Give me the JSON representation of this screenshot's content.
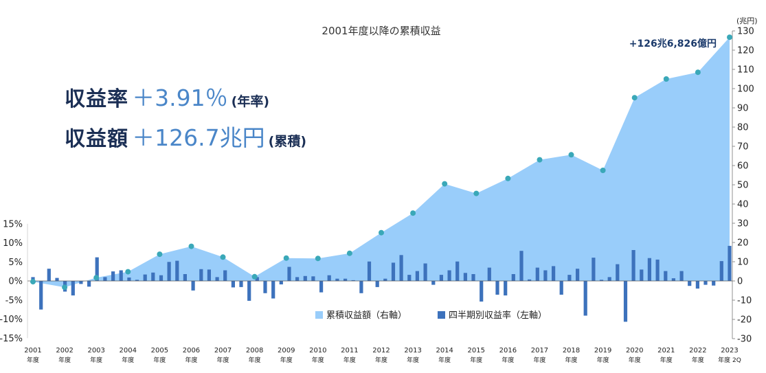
{
  "chart_data": {
    "type": "area+bar",
    "title": "2001年度以降の累積収益",
    "right_axis": {
      "unit": "(兆円)",
      "ylim": [
        -30,
        130
      ],
      "ticks": [
        "130",
        "120",
        "110",
        "100",
        "90",
        "80",
        "70",
        "60",
        "50",
        "40",
        "30",
        "20",
        "10",
        "0",
        "-10",
        "-20",
        "-30"
      ]
    },
    "left_axis": {
      "ylim": [
        -15,
        15
      ],
      "ticks": [
        "15%",
        "10%",
        "5%",
        "0%",
        "-5%",
        "-10%",
        "-15%"
      ]
    },
    "x_ticks": [
      {
        "year": "2001",
        "sub": "年度"
      },
      {
        "year": "2002",
        "sub": "年度"
      },
      {
        "year": "2003",
        "sub": "年度"
      },
      {
        "year": "2004",
        "sub": "年度"
      },
      {
        "year": "2005",
        "sub": "年度"
      },
      {
        "year": "2006",
        "sub": "年度"
      },
      {
        "year": "2007",
        "sub": "年度"
      },
      {
        "year": "2008",
        "sub": "年度"
      },
      {
        "year": "2009",
        "sub": "年度"
      },
      {
        "year": "2010",
        "sub": "年度"
      },
      {
        "year": "2011",
        "sub": "年度"
      },
      {
        "year": "2012",
        "sub": "年度"
      },
      {
        "year": "2013",
        "sub": "年度"
      },
      {
        "year": "2014",
        "sub": "年度"
      },
      {
        "year": "2015",
        "sub": "年度"
      },
      {
        "year": "2016",
        "sub": "年度"
      },
      {
        "year": "2017",
        "sub": "年度"
      },
      {
        "year": "2018",
        "sub": "年度"
      },
      {
        "year": "2019",
        "sub": "年度"
      },
      {
        "year": "2020",
        "sub": "年度"
      },
      {
        "year": "2021",
        "sub": "年度"
      },
      {
        "year": "2022",
        "sub": "年度"
      },
      {
        "year": "2023",
        "sub": "年度 2Q"
      }
    ],
    "series": [
      {
        "name": "累積収益額（右軸）",
        "axis": "right",
        "color": "#99cdfa",
        "marker_color": "#3aa8b8",
        "x": [
          2001.0,
          2002.0,
          2003.0,
          2004.0,
          2005.0,
          2006.0,
          2007.0,
          2008.0,
          2009.0,
          2010.0,
          2011.0,
          2012.0,
          2013.0,
          2014.0,
          2015.0,
          2016.0,
          2017.0,
          2018.0,
          2019.0,
          2020.0,
          2021.0,
          2022.0,
          2023.0
        ],
        "values": [
          -0.4,
          -3.3,
          1.7,
          4.8,
          13.9,
          18.0,
          12.4,
          2.2,
          11.9,
          11.7,
          14.4,
          25.1,
          35.3,
          50.5,
          45.5,
          53.3,
          63.0,
          65.6,
          57.5,
          95.3,
          105.0,
          108.5,
          126.7
        ]
      },
      {
        "name": "四半期別収益率（左軸）",
        "axis": "left",
        "color": "#3d72bc",
        "values": [
          1.0,
          -7.5,
          3.2,
          0.8,
          -2.8,
          -3.8,
          -0.8,
          -1.5,
          6.2,
          1.0,
          2.5,
          2.8,
          0.9,
          0.3,
          1.7,
          2.2,
          1.5,
          5.0,
          5.3,
          1.8,
          -2.5,
          3.1,
          3.0,
          1.0,
          2.8,
          -1.7,
          -1.6,
          -5.2,
          1.0,
          -3.2,
          -4.6,
          -0.9,
          3.7,
          1.0,
          1.3,
          1.2,
          -3.0,
          1.5,
          0.6,
          0.6,
          0.2,
          -3.2,
          5.1,
          -1.6,
          0.6,
          4.8,
          6.8,
          1.6,
          2.6,
          4.6,
          -1.0,
          1.6,
          2.8,
          5.1,
          2.1,
          1.8,
          -5.4,
          3.5,
          -3.6,
          -3.8,
          1.8,
          7.9,
          0.4,
          3.5,
          2.8,
          3.9,
          -3.6,
          1.6,
          3.2,
          -9.1,
          6.1,
          0.3,
          1.0,
          4.4,
          -10.7,
          8.1,
          3.0,
          6.0,
          5.6,
          2.6,
          0.7,
          2.6,
          -1.3,
          -2.0,
          -1.0,
          -1.2,
          5.2,
          9.2
        ]
      }
    ],
    "annotation": "+126兆6,826億円",
    "kpis": [
      {
        "label": "収益率",
        "value": "＋3.91％",
        "paren": "(年率)"
      },
      {
        "label": "収益額",
        "value": "＋126.7兆円",
        "paren": "(累積)"
      }
    ],
    "legend": {
      "position": "bottom-right-inside"
    }
  }
}
